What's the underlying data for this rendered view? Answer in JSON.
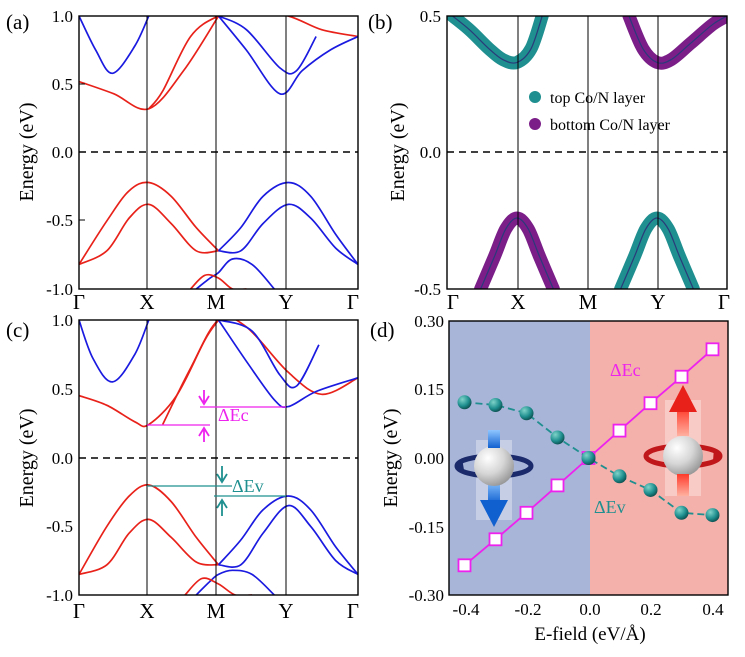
{
  "figure": {
    "panel_labels": [
      "(a)",
      "(b)",
      "(c)",
      "(d)"
    ],
    "kpath": [
      "Γ",
      "X",
      "M",
      "Y",
      "Γ"
    ],
    "energy_axis_label": "Energy (eV)"
  },
  "chart_data": [
    {
      "panel": "(a)",
      "type": "line",
      "ylabel": "Energy (eV)",
      "xticks": [
        "Γ",
        "X",
        "M",
        "Y",
        "Γ"
      ],
      "ylim": [
        -1.0,
        1.0
      ],
      "yticks": [
        "-1.0",
        "-0.5",
        "0.0",
        "0.5",
        "1.0"
      ],
      "fermi_level": 0.0,
      "series": [
        {
          "color": "#e8221a",
          "k": [
            0,
            0.125,
            0.25,
            0.375,
            0.5
          ],
          "energy": [
            0.52,
            0.43,
            0.32,
            0.6,
            1.0
          ]
        },
        {
          "color": "#e8221a",
          "k": [
            0.25,
            0.3,
            0.4,
            0.5,
            0.6,
            0.75,
            0.87,
            1.0
          ],
          "energy": [
            0.32,
            0.45,
            0.85,
            1.0,
            1.05,
            1.0,
            0.9,
            0.85
          ]
        },
        {
          "color": "#1a1ae0",
          "k": [
            0.0,
            0.06,
            0.12,
            0.2,
            0.25
          ],
          "energy": [
            1.0,
            0.75,
            0.58,
            0.78,
            1.0
          ]
        },
        {
          "color": "#1a1ae0",
          "k": [
            0.5,
            0.6,
            0.72,
            0.8,
            0.9,
            1.0
          ],
          "energy": [
            1.0,
            0.75,
            0.43,
            0.6,
            0.75,
            0.85
          ]
        },
        {
          "color": "#1a1ae0",
          "k": [
            0.5,
            0.6,
            0.72,
            0.78,
            0.85
          ],
          "energy": [
            1.0,
            0.9,
            0.62,
            0.6,
            0.85
          ]
        },
        {
          "color": "#e8221a",
          "k": [
            0,
            0.1,
            0.18,
            0.25,
            0.33,
            0.42,
            0.5
          ],
          "energy": [
            -0.82,
            -0.5,
            -0.28,
            -0.22,
            -0.32,
            -0.55,
            -0.72
          ]
        },
        {
          "color": "#e8221a",
          "k": [
            0,
            0.1,
            0.18,
            0.25,
            0.33,
            0.42,
            0.5
          ],
          "energy": [
            -0.82,
            -0.72,
            -0.48,
            -0.38,
            -0.52,
            -0.72,
            -0.72
          ]
        },
        {
          "color": "#1a1ae0",
          "k": [
            0.5,
            0.58,
            0.66,
            0.75,
            0.83,
            0.92,
            1.0
          ],
          "energy": [
            -0.72,
            -0.55,
            -0.32,
            -0.22,
            -0.32,
            -0.6,
            -0.82
          ]
        },
        {
          "color": "#1a1ae0",
          "k": [
            0.5,
            0.58,
            0.66,
            0.75,
            0.83,
            0.92,
            1.0
          ],
          "energy": [
            -0.72,
            -0.72,
            -0.52,
            -0.38,
            -0.48,
            -0.7,
            -0.82
          ]
        },
        {
          "color": "#1a1ae0",
          "k": [
            0.42,
            0.47,
            0.5,
            0.55,
            0.62,
            0.7
          ],
          "energy": [
            -1.0,
            -0.92,
            -0.88,
            -0.78,
            -0.82,
            -1.0
          ]
        },
        {
          "color": "#e8221a",
          "k": [
            0.4,
            0.45,
            0.5,
            0.55,
            0.6
          ],
          "energy": [
            -1.0,
            -0.9,
            -0.92,
            -1.0,
            -1.0
          ]
        }
      ]
    },
    {
      "panel": "(b)",
      "type": "scatter",
      "ylabel": "Energy (eV)",
      "xticks": [
        "Γ",
        "X",
        "M",
        "Y",
        "Γ"
      ],
      "ylim": [
        -0.5,
        0.5
      ],
      "yticks": [
        "-0.5",
        "0.0",
        "0.5"
      ],
      "fermi_level": 0.0,
      "legend": {
        "position": "top-right"
      },
      "series": [
        {
          "name": "top Co/N layer",
          "color": "#1f8f8f",
          "k": [
            0.02,
            0.08,
            0.15,
            0.2,
            0.25,
            0.3,
            0.34
          ],
          "energy": [
            0.5,
            0.45,
            0.38,
            0.34,
            0.33,
            0.38,
            0.5
          ]
        },
        {
          "name": "top Co/N layer",
          "color": "#1f8f8f",
          "k": [
            0.62,
            0.67,
            0.71,
            0.75,
            0.79,
            0.83,
            0.88
          ],
          "energy": [
            -0.5,
            -0.38,
            -0.28,
            -0.24,
            -0.28,
            -0.38,
            -0.5
          ]
        },
        {
          "name": "bottom Co/N layer",
          "color": "#7b1e88",
          "k": [
            0.65,
            0.7,
            0.75,
            0.8,
            0.87,
            0.95,
            1.0
          ],
          "energy": [
            0.5,
            0.38,
            0.33,
            0.34,
            0.4,
            0.47,
            0.5
          ]
        },
        {
          "name": "bottom Co/N layer",
          "color": "#7b1e88",
          "k": [
            0.12,
            0.17,
            0.21,
            0.25,
            0.29,
            0.33,
            0.38
          ],
          "energy": [
            -0.5,
            -0.38,
            -0.28,
            -0.24,
            -0.28,
            -0.38,
            -0.5
          ]
        }
      ]
    },
    {
      "panel": "(c)",
      "type": "line",
      "ylabel": "Energy (eV)",
      "xticks": [
        "Γ",
        "X",
        "M",
        "Y",
        "Γ"
      ],
      "ylim": [
        -1.0,
        1.0
      ],
      "yticks": [
        "-1.0",
        "-0.5",
        "0.0",
        "0.5",
        "1.0"
      ],
      "fermi_level": 0.0,
      "annotations": [
        "ΔEc",
        "ΔEv"
      ],
      "series": [
        {
          "color": "#e8221a",
          "k": [
            0,
            0.1,
            0.2,
            0.25,
            0.35,
            0.45,
            0.5
          ],
          "energy": [
            0.45,
            0.38,
            0.26,
            0.24,
            0.45,
            0.85,
            1.0
          ]
        },
        {
          "color": "#e8221a",
          "k": [
            0.3,
            0.4,
            0.5,
            0.6,
            0.75,
            0.87,
            1.0
          ],
          "energy": [
            0.24,
            0.65,
            1.0,
            0.95,
            0.62,
            0.46,
            0.58
          ]
        },
        {
          "color": "#1a1ae0",
          "k": [
            0.0,
            0.05,
            0.12,
            0.2,
            0.25
          ],
          "energy": [
            1.0,
            0.72,
            0.55,
            0.75,
            1.0
          ]
        },
        {
          "color": "#1a1ae0",
          "k": [
            0.5,
            0.6,
            0.7,
            0.75,
            0.85,
            1.0
          ],
          "energy": [
            1.0,
            0.7,
            0.42,
            0.37,
            0.48,
            0.58
          ]
        },
        {
          "color": "#1a1ae0",
          "k": [
            0.5,
            0.62,
            0.72,
            0.78,
            0.86
          ],
          "energy": [
            1.0,
            0.92,
            0.6,
            0.52,
            0.82
          ]
        },
        {
          "color": "#e8221a",
          "k": [
            0,
            0.1,
            0.18,
            0.25,
            0.33,
            0.42,
            0.5
          ],
          "energy": [
            -0.85,
            -0.5,
            -0.28,
            -0.2,
            -0.32,
            -0.58,
            -0.78
          ]
        },
        {
          "color": "#e8221a",
          "k": [
            0,
            0.1,
            0.18,
            0.25,
            0.33,
            0.42,
            0.5
          ],
          "energy": [
            -0.85,
            -0.78,
            -0.55,
            -0.45,
            -0.58,
            -0.76,
            -0.78
          ]
        },
        {
          "color": "#1a1ae0",
          "k": [
            0.5,
            0.58,
            0.66,
            0.75,
            0.83,
            0.92,
            1.0
          ],
          "energy": [
            -0.78,
            -0.6,
            -0.38,
            -0.28,
            -0.38,
            -0.65,
            -0.85
          ]
        },
        {
          "color": "#1a1ae0",
          "k": [
            0.5,
            0.58,
            0.66,
            0.75,
            0.83,
            0.92,
            1.0
          ],
          "energy": [
            -0.78,
            -0.78,
            -0.55,
            -0.35,
            -0.5,
            -0.75,
            -0.85
          ]
        },
        {
          "color": "#1a1ae0",
          "k": [
            0.42,
            0.47,
            0.5,
            0.55,
            0.62,
            0.7
          ],
          "energy": [
            -1.0,
            -0.9,
            -0.85,
            -0.82,
            -0.85,
            -1.0
          ]
        },
        {
          "color": "#e8221a",
          "k": [
            0.38,
            0.44,
            0.5,
            0.56,
            0.62
          ],
          "energy": [
            -1.0,
            -0.88,
            -0.92,
            -1.0,
            -1.0
          ]
        }
      ]
    },
    {
      "panel": "(d)",
      "type": "line",
      "xlabel": "E-field (eV/Å)",
      "ylabel": "Energy (eV)",
      "xlim": [
        -0.45,
        0.45
      ],
      "ylim": [
        -0.3,
        0.3
      ],
      "xticks": [
        "-0.4",
        "-0.2",
        "0.0",
        "0.2",
        "0.4"
      ],
      "yticks": [
        "-0.30",
        "-0.15",
        "0.00",
        "0.15",
        "0.30"
      ],
      "background": {
        "left_color": "#a8b4d8",
        "right_color": "#f4b0aa"
      },
      "series": [
        {
          "name": "ΔEc",
          "color": "#ee22ee",
          "marker": "open-square",
          "x": [
            -0.4,
            -0.3,
            -0.2,
            -0.1,
            0.0,
            0.1,
            0.2,
            0.3,
            0.4
          ],
          "y": [
            -0.235,
            -0.178,
            -0.12,
            -0.06,
            0.0,
            0.06,
            0.12,
            0.178,
            0.238
          ]
        },
        {
          "name": "ΔEv",
          "color": "#1f8f8f",
          "marker": "sphere",
          "x": [
            -0.4,
            -0.3,
            -0.2,
            -0.1,
            0.0,
            0.1,
            0.2,
            0.3,
            0.4
          ],
          "y": [
            0.122,
            0.116,
            0.098,
            0.045,
            0.0,
            -0.04,
            -0.07,
            -0.12,
            -0.125
          ]
        }
      ]
    }
  ]
}
